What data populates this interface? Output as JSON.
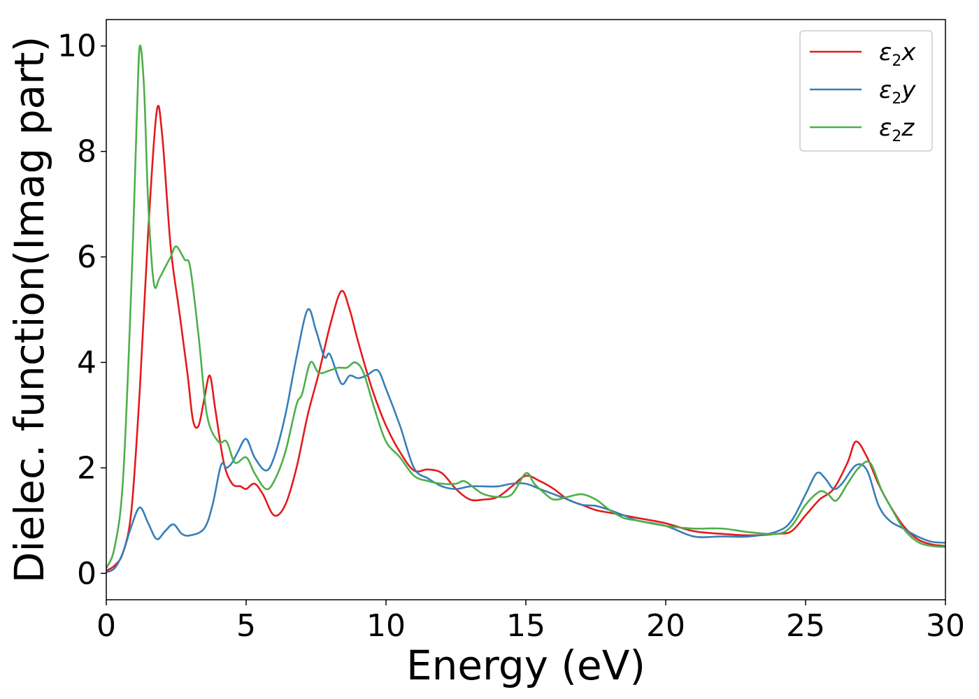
{
  "chart_data": {
    "type": "line",
    "title": "",
    "xlabel": "Energy (eV)",
    "ylabel": "Dielec. function(Imag part)",
    "xlim": [
      0,
      30
    ],
    "ylim": [
      -0.5,
      10.5
    ],
    "xticks": [
      0,
      5,
      10,
      15,
      20,
      25,
      30
    ],
    "yticks": [
      0,
      2,
      4,
      6,
      8,
      10
    ],
    "xtick_labels": [
      "0",
      "5",
      "10",
      "15",
      "20",
      "25",
      "30"
    ],
    "ytick_labels": [
      "0",
      "2",
      "4",
      "6",
      "8",
      "10"
    ],
    "grid": false,
    "legend_position": "top-right",
    "series": [
      {
        "name": "ε2x",
        "legend_base": "ε",
        "legend_sub": "2",
        "legend_tail": "x",
        "color": "#e41a1c",
        "points": [
          [
            0,
            0.05
          ],
          [
            0.3,
            0.15
          ],
          [
            0.6,
            0.4
          ],
          [
            0.9,
            1.2
          ],
          [
            1.2,
            3.5
          ],
          [
            1.5,
            6.5
          ],
          [
            1.8,
            8.75
          ],
          [
            2.0,
            8.3
          ],
          [
            2.3,
            6.2
          ],
          [
            2.6,
            5.0
          ],
          [
            2.9,
            3.8
          ],
          [
            3.1,
            2.9
          ],
          [
            3.3,
            2.8
          ],
          [
            3.5,
            3.3
          ],
          [
            3.7,
            3.75
          ],
          [
            3.9,
            3.1
          ],
          [
            4.2,
            2.1
          ],
          [
            4.5,
            1.7
          ],
          [
            4.8,
            1.65
          ],
          [
            5.0,
            1.6
          ],
          [
            5.3,
            1.7
          ],
          [
            5.6,
            1.5
          ],
          [
            6.0,
            1.1
          ],
          [
            6.4,
            1.3
          ],
          [
            6.8,
            2.0
          ],
          [
            7.2,
            3.0
          ],
          [
            7.6,
            3.8
          ],
          [
            8.0,
            4.7
          ],
          [
            8.4,
            5.35
          ],
          [
            8.7,
            5.0
          ],
          [
            9.0,
            4.4
          ],
          [
            9.5,
            3.5
          ],
          [
            10.0,
            2.8
          ],
          [
            10.5,
            2.3
          ],
          [
            11.0,
            1.95
          ],
          [
            11.5,
            1.97
          ],
          [
            12.0,
            1.9
          ],
          [
            12.5,
            1.6
          ],
          [
            13.0,
            1.4
          ],
          [
            13.5,
            1.4
          ],
          [
            14.0,
            1.45
          ],
          [
            14.5,
            1.65
          ],
          [
            15.0,
            1.85
          ],
          [
            15.5,
            1.75
          ],
          [
            16.0,
            1.6
          ],
          [
            16.5,
            1.4
          ],
          [
            17.0,
            1.3
          ],
          [
            17.5,
            1.2
          ],
          [
            18.0,
            1.15
          ],
          [
            18.5,
            1.1
          ],
          [
            19.0,
            1.05
          ],
          [
            20.0,
            0.95
          ],
          [
            21.0,
            0.8
          ],
          [
            22.0,
            0.75
          ],
          [
            23.0,
            0.72
          ],
          [
            24.0,
            0.75
          ],
          [
            24.5,
            0.8
          ],
          [
            25.0,
            1.1
          ],
          [
            25.5,
            1.4
          ],
          [
            26.0,
            1.6
          ],
          [
            26.5,
            2.1
          ],
          [
            26.8,
            2.5
          ],
          [
            27.2,
            2.2
          ],
          [
            27.6,
            1.7
          ],
          [
            28.0,
            1.3
          ],
          [
            28.5,
            0.9
          ],
          [
            29.0,
            0.65
          ],
          [
            29.5,
            0.55
          ],
          [
            30,
            0.52
          ]
        ]
      },
      {
        "name": "ε2y",
        "legend_base": "ε",
        "legend_sub": "2",
        "legend_tail": "y",
        "color": "#377eb8",
        "points": [
          [
            0,
            0.02
          ],
          [
            0.3,
            0.1
          ],
          [
            0.6,
            0.4
          ],
          [
            0.9,
            0.9
          ],
          [
            1.2,
            1.25
          ],
          [
            1.5,
            0.95
          ],
          [
            1.8,
            0.65
          ],
          [
            2.1,
            0.8
          ],
          [
            2.4,
            0.93
          ],
          [
            2.7,
            0.75
          ],
          [
            3.0,
            0.72
          ],
          [
            3.5,
            0.85
          ],
          [
            3.8,
            1.3
          ],
          [
            4.1,
            2.05
          ],
          [
            4.3,
            2.0
          ],
          [
            4.5,
            2.1
          ],
          [
            4.7,
            2.3
          ],
          [
            5.0,
            2.55
          ],
          [
            5.3,
            2.2
          ],
          [
            5.7,
            1.95
          ],
          [
            6.0,
            2.2
          ],
          [
            6.4,
            3.0
          ],
          [
            6.8,
            4.1
          ],
          [
            7.2,
            5.0
          ],
          [
            7.5,
            4.6
          ],
          [
            7.8,
            4.1
          ],
          [
            8.0,
            4.15
          ],
          [
            8.4,
            3.6
          ],
          [
            8.7,
            3.75
          ],
          [
            9.0,
            3.7
          ],
          [
            9.3,
            3.75
          ],
          [
            9.7,
            3.85
          ],
          [
            10.0,
            3.5
          ],
          [
            10.5,
            2.8
          ],
          [
            11.0,
            2.0
          ],
          [
            11.5,
            1.8
          ],
          [
            12.0,
            1.65
          ],
          [
            12.5,
            1.6
          ],
          [
            13.0,
            1.65
          ],
          [
            13.5,
            1.65
          ],
          [
            14.0,
            1.65
          ],
          [
            14.5,
            1.7
          ],
          [
            15.0,
            1.7
          ],
          [
            15.5,
            1.6
          ],
          [
            16.0,
            1.5
          ],
          [
            16.5,
            1.4
          ],
          [
            17.0,
            1.3
          ],
          [
            17.5,
            1.28
          ],
          [
            18.0,
            1.2
          ],
          [
            18.5,
            1.1
          ],
          [
            19.0,
            1.0
          ],
          [
            20.0,
            0.9
          ],
          [
            21.0,
            0.7
          ],
          [
            22.0,
            0.7
          ],
          [
            23.0,
            0.7
          ],
          [
            24.0,
            0.8
          ],
          [
            24.5,
            1.0
          ],
          [
            25.0,
            1.5
          ],
          [
            25.4,
            1.9
          ],
          [
            25.7,
            1.8
          ],
          [
            26.0,
            1.6
          ],
          [
            26.3,
            1.7
          ],
          [
            26.8,
            2.05
          ],
          [
            27.2,
            1.95
          ],
          [
            27.6,
            1.3
          ],
          [
            28.0,
            1.0
          ],
          [
            28.5,
            0.85
          ],
          [
            29.0,
            0.7
          ],
          [
            29.5,
            0.6
          ],
          [
            30,
            0.58
          ]
        ]
      },
      {
        "name": "ε2z",
        "legend_base": "ε",
        "legend_sub": "2",
        "legend_tail": "z",
        "color": "#4daf4a",
        "points": [
          [
            0,
            0.1
          ],
          [
            0.3,
            0.5
          ],
          [
            0.6,
            1.8
          ],
          [
            0.9,
            5.5
          ],
          [
            1.1,
            8.8
          ],
          [
            1.2,
            10.0
          ],
          [
            1.35,
            9.2
          ],
          [
            1.5,
            7.0
          ],
          [
            1.7,
            5.5
          ],
          [
            1.9,
            5.6
          ],
          [
            2.1,
            5.8
          ],
          [
            2.3,
            6.0
          ],
          [
            2.5,
            6.2
          ],
          [
            2.8,
            5.95
          ],
          [
            3.0,
            5.8
          ],
          [
            3.3,
            4.5
          ],
          [
            3.6,
            3.0
          ],
          [
            4.0,
            2.5
          ],
          [
            4.3,
            2.5
          ],
          [
            4.6,
            2.1
          ],
          [
            5.0,
            2.2
          ],
          [
            5.3,
            1.9
          ],
          [
            5.7,
            1.6
          ],
          [
            6.0,
            1.75
          ],
          [
            6.4,
            2.3
          ],
          [
            6.8,
            3.2
          ],
          [
            7.0,
            3.4
          ],
          [
            7.3,
            4.0
          ],
          [
            7.6,
            3.8
          ],
          [
            8.0,
            3.85
          ],
          [
            8.3,
            3.9
          ],
          [
            8.6,
            3.9
          ],
          [
            8.9,
            4.0
          ],
          [
            9.2,
            3.8
          ],
          [
            9.6,
            3.1
          ],
          [
            10.0,
            2.5
          ],
          [
            10.5,
            2.2
          ],
          [
            11.0,
            1.85
          ],
          [
            11.5,
            1.75
          ],
          [
            12.0,
            1.7
          ],
          [
            12.5,
            1.7
          ],
          [
            12.8,
            1.75
          ],
          [
            13.2,
            1.6
          ],
          [
            13.5,
            1.5
          ],
          [
            14.0,
            1.45
          ],
          [
            14.5,
            1.5
          ],
          [
            15.0,
            1.9
          ],
          [
            15.3,
            1.7
          ],
          [
            15.6,
            1.55
          ],
          [
            16.0,
            1.4
          ],
          [
            16.5,
            1.45
          ],
          [
            17.0,
            1.5
          ],
          [
            17.5,
            1.4
          ],
          [
            18.0,
            1.2
          ],
          [
            18.5,
            1.05
          ],
          [
            19.0,
            1.0
          ],
          [
            20.0,
            0.9
          ],
          [
            21.0,
            0.85
          ],
          [
            22.0,
            0.85
          ],
          [
            23.0,
            0.78
          ],
          [
            24.0,
            0.75
          ],
          [
            24.5,
            0.9
          ],
          [
            25.0,
            1.3
          ],
          [
            25.5,
            1.55
          ],
          [
            25.8,
            1.5
          ],
          [
            26.1,
            1.38
          ],
          [
            26.5,
            1.7
          ],
          [
            26.9,
            2.0
          ],
          [
            27.3,
            2.1
          ],
          [
            27.7,
            1.6
          ],
          [
            28.0,
            1.3
          ],
          [
            28.5,
            0.85
          ],
          [
            29.0,
            0.6
          ],
          [
            29.5,
            0.52
          ],
          [
            30,
            0.5
          ]
        ]
      }
    ]
  }
}
